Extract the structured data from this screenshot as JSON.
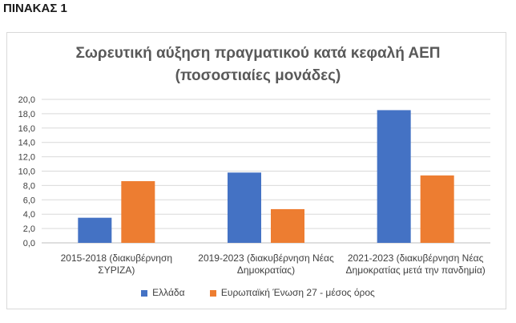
{
  "page": {
    "heading": "ΠΙΝΑΚΑΣ 1"
  },
  "chart_data": {
    "type": "bar",
    "title_line1": "Σωρευτική αύξηση πραγματικού κατά κεφαλή ΑΕΠ",
    "title_line2": "(ποσοστιαίες μονάδες)",
    "categories": [
      [
        "2015-2018 (διακυβέρνηση",
        "ΣΥΡΙΖΑ)"
      ],
      [
        "2019-2023 (διακυβέρνηση Νέας",
        "Δημοκρατίας)"
      ],
      [
        "2021-2023 (διακυβέρνηση Νέας",
        "Δημοκρατίας μετά την πανδημία)"
      ]
    ],
    "series": [
      {
        "name": "Ελλάδα",
        "color": "#4472c4",
        "values": [
          3.5,
          9.8,
          18.5
        ]
      },
      {
        "name": "Ευρωπαϊκή Ένωση 27 - μέσος όρος",
        "color": "#ed7d31",
        "values": [
          8.6,
          4.7,
          9.4
        ]
      }
    ],
    "ylim": [
      0,
      20
    ],
    "yticks": [
      "0,0",
      "2,0",
      "4,0",
      "6,0",
      "8,0",
      "10,0",
      "12,0",
      "14,0",
      "16,0",
      "18,0",
      "20,0"
    ],
    "grid": true,
    "legend_position": "bottom"
  }
}
